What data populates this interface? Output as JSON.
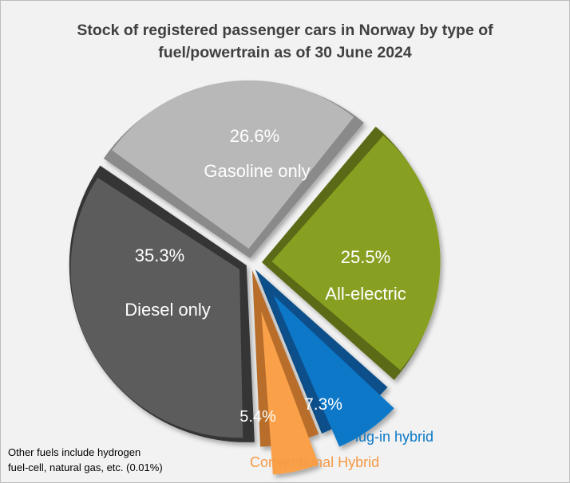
{
  "chart_data": {
    "type": "pie",
    "title_line1": "Stock of registered passenger cars in Norway by type of",
    "title_line2": "fuel/powertrain as of 30 June 2024",
    "slices": [
      {
        "name": "All-electric",
        "value": 25.5,
        "label": "25.5%",
        "color": "#88a020",
        "dark": "#5a6b12"
      },
      {
        "name": "Plug-in hybrid",
        "value": 7.3,
        "label": "7.3%",
        "color": "#0a78c8",
        "dark": "#08508a"
      },
      {
        "name": "Conventional Hybrid",
        "value": 5.4,
        "label": "5.4%",
        "color": "#f9a04a",
        "dark": "#b86e2c"
      },
      {
        "name": "Diesel only",
        "value": 35.3,
        "label": "35.3%",
        "color": "#5c5c5c",
        "dark": "#353535"
      },
      {
        "name": "Gasoline only",
        "value": 26.6,
        "label": "26.6%",
        "color": "#b8b8b8",
        "dark": "#8a8a8a"
      }
    ],
    "start_angle_deg": 40,
    "note_line1": "Other fuels include hydrogen",
    "note_line2": "fuel-cell, natural gas, etc. (0.01%)"
  }
}
